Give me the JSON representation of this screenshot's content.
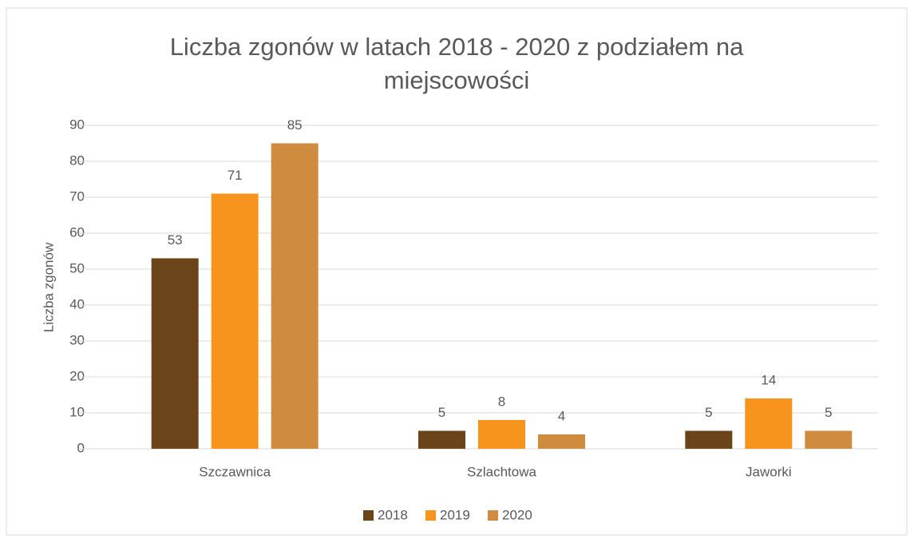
{
  "chart_data": {
    "type": "bar",
    "title": "Liczba zgonów w latach 2018 - 2020 z podziałem na miejscowości",
    "y_label": "Liczba zgonów",
    "categories": [
      "Szczawnica",
      "Szlachtowa",
      "Jaworki"
    ],
    "series": [
      {
        "name": "2018",
        "color": "#6b4519",
        "values": [
          53,
          5,
          5
        ]
      },
      {
        "name": "2019",
        "color": "#f7941d",
        "values": [
          71,
          8,
          14
        ]
      },
      {
        "name": "2020",
        "color": "#cf8c3e",
        "values": [
          85,
          4,
          5
        ]
      }
    ],
    "ylim": [
      0,
      90
    ],
    "yticks": [
      0,
      10,
      20,
      30,
      40,
      50,
      60,
      70,
      80,
      90
    ],
    "grid": true,
    "legend": "bottom",
    "data_labels": true
  }
}
